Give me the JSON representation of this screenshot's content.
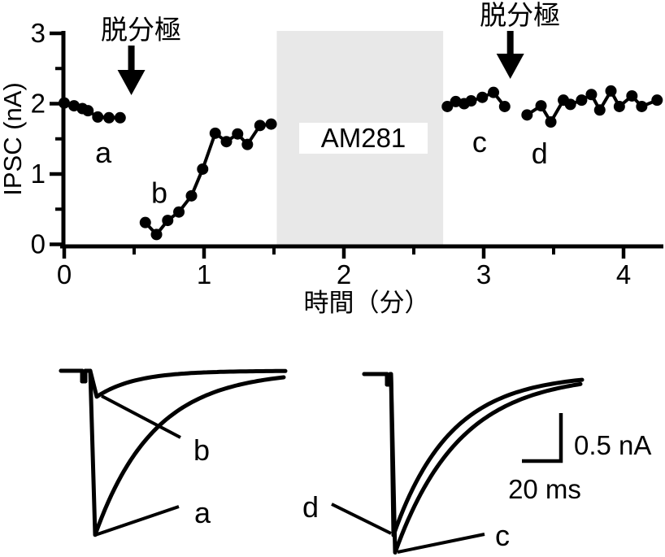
{
  "figure": {
    "background_color": "#ffffff",
    "ink_color": "#000000",
    "shade_color": "#e8e8e8"
  },
  "chart_data": [
    {
      "type": "scatter",
      "title": "",
      "xlabel": "時間（分）",
      "ylabel": "IPSC (nA)",
      "xlim": [
        0,
        4.3
      ],
      "ylim": [
        0,
        3
      ],
      "grid": false,
      "x_ticks": {
        "major": [
          {
            "v": 0,
            "label": "0"
          },
          {
            "v": 1,
            "label": "1"
          },
          {
            "v": 2,
            "label": "2"
          },
          {
            "v": 3,
            "label": "3"
          },
          {
            "v": 4,
            "label": "4"
          }
        ],
        "minor": [
          0.5,
          1.5,
          2.5,
          3.5
        ]
      },
      "y_ticks": {
        "major": [
          {
            "v": 0,
            "label": "0"
          },
          {
            "v": 1,
            "label": "1"
          },
          {
            "v": 2,
            "label": "2"
          },
          {
            "v": 3,
            "label": "3"
          }
        ],
        "minor": [
          0.5,
          1.5,
          2.5
        ]
      },
      "shaded_region": {
        "label": "AM281",
        "x_start": 1.52,
        "x_end": 2.71,
        "color": "#e8e8e8"
      },
      "arrows": [
        {
          "t": 0.48,
          "label": "脱分極"
        },
        {
          "t": 3.19,
          "label": "脱分極"
        }
      ],
      "letters": [
        {
          "text": "a",
          "t": 0.28,
          "v": 1.3
        },
        {
          "text": "b",
          "t": 0.68,
          "v": 0.73
        },
        {
          "text": "c",
          "t": 2.97,
          "v": 1.45
        },
        {
          "text": "d",
          "t": 3.4,
          "v": 1.29
        }
      ],
      "series": [
        {
          "name": "a",
          "points": [
            [
              0,
              2.01
            ],
            [
              0.07,
              1.97
            ],
            [
              0.13,
              1.93
            ],
            [
              0.17,
              1.9
            ],
            [
              0.24,
              1.81
            ],
            [
              0.32,
              1.8
            ],
            [
              0.4,
              1.8
            ]
          ]
        },
        {
          "name": "b",
          "points": [
            [
              0.58,
              0.31
            ],
            [
              0.66,
              0.14
            ],
            [
              0.74,
              0.34
            ],
            [
              0.82,
              0.46
            ],
            [
              0.91,
              0.69
            ],
            [
              0.99,
              1.07
            ],
            [
              1.08,
              1.58
            ],
            [
              1.16,
              1.46
            ],
            [
              1.24,
              1.57
            ],
            [
              1.31,
              1.42
            ],
            [
              1.4,
              1.69
            ],
            [
              1.48,
              1.71
            ]
          ]
        },
        {
          "name": "c",
          "points": [
            [
              2.74,
              1.96
            ],
            [
              2.8,
              2.03
            ],
            [
              2.86,
              2.0
            ],
            [
              2.91,
              2.04
            ],
            [
              2.99,
              2.09
            ],
            [
              3.07,
              2.16
            ],
            [
              3.15,
              1.96
            ]
          ]
        },
        {
          "name": "d",
          "points": [
            [
              3.31,
              1.84
            ],
            [
              3.41,
              1.97
            ],
            [
              3.48,
              1.74
            ],
            [
              3.57,
              2.05
            ],
            [
              3.62,
              1.99
            ],
            [
              3.7,
              2.05
            ],
            [
              3.77,
              2.13
            ],
            [
              3.83,
              1.91
            ],
            [
              3.91,
              2.18
            ],
            [
              3.97,
              1.96
            ],
            [
              4.06,
              2.11
            ],
            [
              4.13,
              1.96
            ],
            [
              4.24,
              2.05
            ]
          ]
        }
      ]
    },
    {
      "type": "traces",
      "scale_bar": {
        "vertical_label": "0.5 nA",
        "horizontal_label": "20 ms"
      },
      "left_panel": {
        "traces": [
          {
            "label": "a",
            "peak_nA": 1.71,
            "decay_tau_ms": 30
          },
          {
            "label": "b",
            "peak_nA": 0.27,
            "decay_tau_ms": 20
          }
        ]
      },
      "right_panel": {
        "traces": [
          {
            "label": "c",
            "peak_nA": 1.86,
            "decay_tau_ms": 33
          },
          {
            "label": "d",
            "peak_nA": 1.68,
            "decay_tau_ms": 29
          }
        ]
      }
    }
  ]
}
